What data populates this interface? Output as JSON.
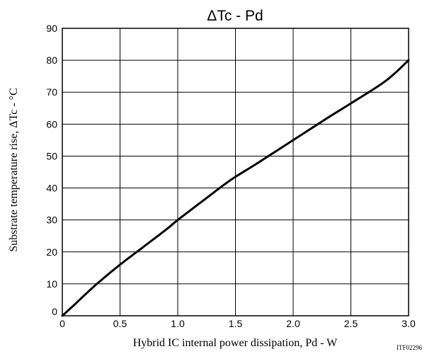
{
  "chart_data": {
    "type": "line",
    "title": "ΔTc - Pd",
    "xlabel": "Hybrid IC internal power dissipation, Pd - W",
    "ylabel": "Substrate temperature rise, ΔTc - °C",
    "xlim": [
      0,
      3.0
    ],
    "ylim": [
      0,
      90
    ],
    "x_ticks": [
      "0",
      "0.5",
      "1.0",
      "1.5",
      "2.0",
      "2.5",
      "3.0"
    ],
    "y_ticks": [
      "0",
      "10",
      "20",
      "30",
      "40",
      "50",
      "60",
      "70",
      "80",
      "90"
    ],
    "grid": true,
    "series": [
      {
        "x": [
          0,
          0.1,
          0.2,
          0.3,
          0.5,
          0.7,
          0.9,
          1.0,
          1.2,
          1.4,
          1.5,
          1.7,
          2.0,
          2.3,
          2.5,
          2.8,
          3.0
        ],
        "values": [
          0,
          3.3,
          6.7,
          10,
          16,
          21.5,
          27,
          30,
          35.5,
          41,
          43.5,
          48,
          55,
          62,
          66.5,
          73.5,
          80
        ]
      }
    ],
    "code": "ITF02296"
  }
}
